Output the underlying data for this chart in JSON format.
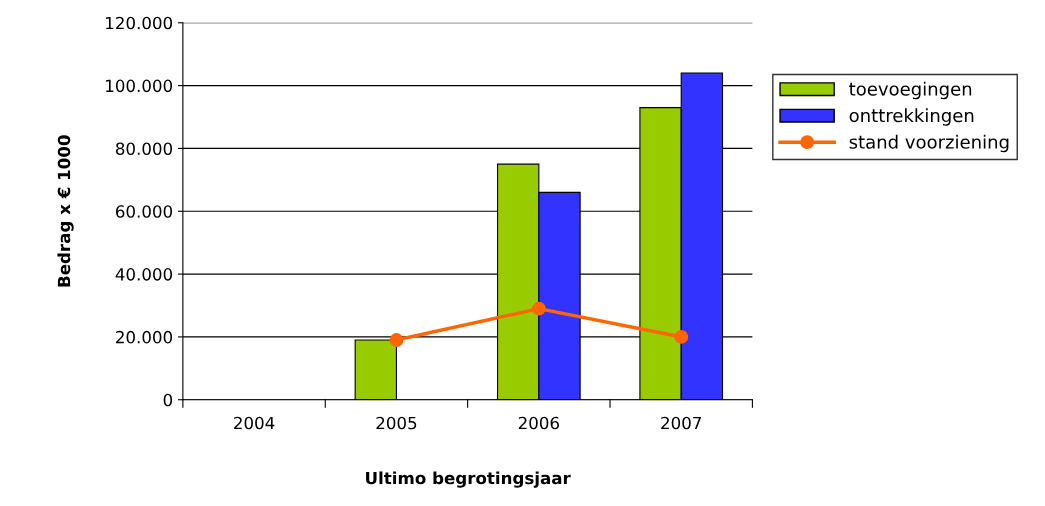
{
  "chart_data": {
    "type": "bar",
    "xlabel": "Ultimo begrotingsjaar",
    "ylabel": "Bedrag x € 1000",
    "categories": [
      "2004",
      "2005",
      "2006",
      "2007"
    ],
    "series": [
      {
        "name": "toevoegingen",
        "color": "#99cc00",
        "values": [
          null,
          19000,
          75000,
          93000
        ]
      },
      {
        "name": "onttrekkingen",
        "color": "#3333ff",
        "values": [
          null,
          null,
          66000,
          104000
        ]
      },
      {
        "name": "stand voorziening",
        "type": "line",
        "color": "#ff6600",
        "marker": "circle",
        "values": [
          null,
          19000,
          29000,
          20000
        ]
      }
    ],
    "ylim": [
      0,
      120000
    ],
    "yticks": [
      {
        "value": 0,
        "label": "0"
      },
      {
        "value": 20000,
        "label": "20.000"
      },
      {
        "value": 40000,
        "label": "40.000"
      },
      {
        "value": 60000,
        "label": "60.000"
      },
      {
        "value": 80000,
        "label": "80.000"
      },
      {
        "value": 100000,
        "label": "100.000"
      },
      {
        "value": 120000,
        "label": "120.000"
      }
    ],
    "grid": "y",
    "legend": "right"
  }
}
